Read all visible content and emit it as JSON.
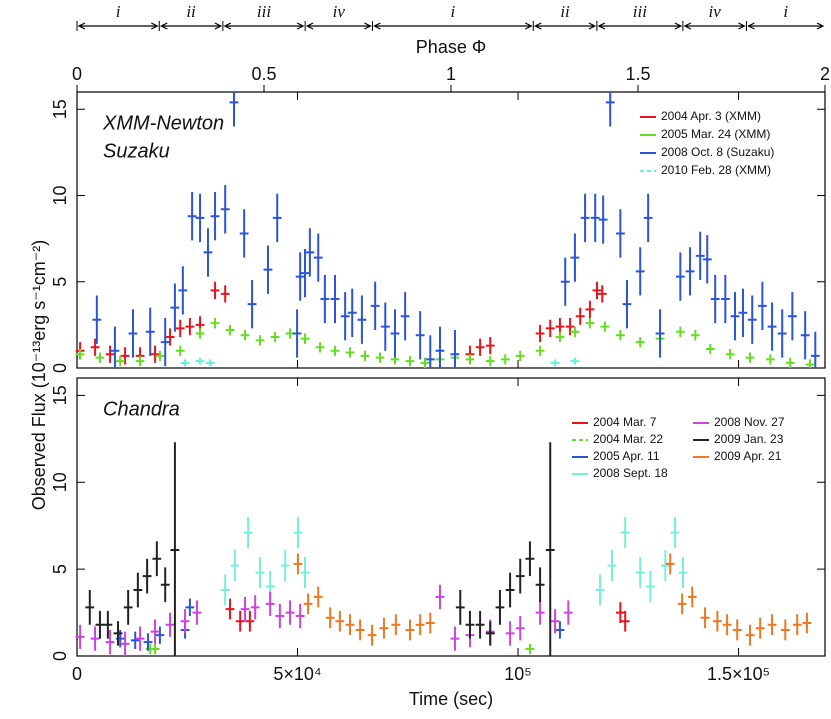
{
  "chart_data": [
    {
      "type": "errorbar",
      "ylabel": "Observed Flux (10⁻¹³erg s⁻¹cm⁻²)",
      "x2label": "Phase Φ",
      "x2lim": [
        0,
        2
      ],
      "x2ticks": [
        0,
        0.5,
        1,
        1.5,
        2
      ],
      "intervals": [
        {
          "label": "i",
          "start": 0,
          "end": 0.22
        },
        {
          "label": "ii",
          "start": 0.22,
          "end": 0.39
        },
        {
          "label": "iii",
          "start": 0.39,
          "end": 0.61
        },
        {
          "label": "iv",
          "start": 0.61,
          "end": 0.79
        },
        {
          "label": "i",
          "start": 0.79,
          "end": 1.22
        },
        {
          "label": "ii",
          "start": 1.22,
          "end": 1.39
        },
        {
          "label": "iii",
          "start": 1.39,
          "end": 1.62
        },
        {
          "label": "iv",
          "start": 1.62,
          "end": 1.79
        },
        {
          "label": "i",
          "start": 1.79,
          "end": 2
        }
      ],
      "annotations": [
        "XMM-Newton",
        "Suzaku"
      ],
      "xlim": [
        0,
        169600
      ],
      "ylim": [
        0,
        16
      ],
      "yticks": [
        0,
        5,
        10,
        15
      ],
      "series": [
        {
          "name": "2004 Apr. 3 (XMM)",
          "color": "#e8141c",
          "error": 0.5,
          "xerr": 1000,
          "x": [
            700,
            4100,
            7500,
            10900,
            14300,
            17700,
            21100,
            23400,
            25600,
            27900,
            31300,
            33600,
            89100,
            91400,
            93700,
            105000,
            107300,
            109500,
            111800,
            114100,
            116300,
            117900,
            119100
          ],
          "values": [
            1.0,
            1.2,
            0.8,
            0.7,
            0.7,
            0.8,
            1.8,
            2.3,
            2.4,
            2.5,
            4.5,
            4.3,
            0.8,
            1.2,
            1.3,
            2.0,
            2.3,
            2.4,
            2.4,
            3.0,
            3.4,
            4.5,
            4.3
          ]
        },
        {
          "name": "2005 Mar. 24 (XMM)",
          "color": "#66dd22",
          "error": 0.3,
          "xerr": 1000,
          "x": [
            700,
            5200,
            9800,
            14300,
            18800,
            23400,
            27900,
            31300,
            34700,
            38100,
            41500,
            44900,
            48300,
            51700,
            55100,
            58500,
            61900,
            65300,
            68700,
            72100,
            75500,
            78900,
            82300,
            85700,
            89100,
            93700,
            97100,
            100500,
            105000,
            109500,
            112900,
            116300,
            119700,
            123200,
            127700,
            132200,
            136800,
            140200,
            143600,
            148100,
            152600,
            157200,
            161700,
            166200
          ],
          "values": [
            0.8,
            0.6,
            0.4,
            0.4,
            0.7,
            1.0,
            2.0,
            2.6,
            2.2,
            1.9,
            1.6,
            1.8,
            2.0,
            1.7,
            1.2,
            1.0,
            0.9,
            0.7,
            0.6,
            0.5,
            0.4,
            0.3,
            0.5,
            0.6,
            0.5,
            0.4,
            0.5,
            0.7,
            1.0,
            1.8,
            2.1,
            2.6,
            2.4,
            1.9,
            1.5,
            1.7,
            2.1,
            1.9,
            1.1,
            0.8,
            0.6,
            0.5,
            0.3,
            0.2
          ]
        },
        {
          "name": "2008 Oct. 8 (Suzaku)",
          "color": "#2a55d8",
          "error": 1.4,
          "xerr": 1000,
          "x": [
            4500,
            8600,
            12700,
            16600,
            20000,
            22200,
            24000,
            26100,
            27900,
            29700,
            31300,
            33600,
            35600,
            37900,
            39700,
            43300,
            45400,
            49900,
            50600,
            51700,
            52800,
            54700,
            56200,
            58500,
            60800,
            62400,
            64600,
            67600,
            69900,
            72100,
            74400,
            77800,
            80100,
            82300,
            85700,
            110700,
            112900,
            115200,
            117500,
            119300,
            120900,
            123200,
            124700,
            127700,
            129500,
            132200,
            136800,
            139000,
            141300,
            142900,
            144700,
            147000,
            149200,
            151000,
            153100,
            155400,
            157600,
            159900,
            162200,
            165100,
            167400
          ],
          "values": [
            2.8,
            1.0,
            2.0,
            2.1,
            1.5,
            3.5,
            4.5,
            8.8,
            8.7,
            6.7,
            8.8,
            9.2,
            15.4,
            7.8,
            3.7,
            5.7,
            8.7,
            2.0,
            5.3,
            5.5,
            6.7,
            6.4,
            4.0,
            4.0,
            3.0,
            3.2,
            2.8,
            3.6,
            2.4,
            2.0,
            3.0,
            1.9,
            0.5,
            1.0,
            0.8,
            5.0,
            6.4,
            8.7,
            8.7,
            8.6,
            15.4,
            7.8,
            3.7,
            5.6,
            8.7,
            2.0,
            5.3,
            5.6,
            6.5,
            6.3,
            4.0,
            4.0,
            3.0,
            3.2,
            2.8,
            3.6,
            2.4,
            2.0,
            3.0,
            1.9,
            0.7
          ]
        },
        {
          "name": "2010 Feb. 28 (XMM)",
          "color": "#66eedd",
          "dash": true,
          "error": 0.2,
          "xerr": 1000,
          "x": [
            24500,
            27900,
            30200,
            108400,
            112900
          ],
          "values": [
            0.3,
            0.4,
            0.3,
            0.3,
            0.4
          ]
        }
      ]
    },
    {
      "type": "errorbar",
      "xlabel": "Time (sec)",
      "annotations": [
        "Chandra"
      ],
      "xlim": [
        0,
        169600
      ],
      "ylim": [
        0,
        16
      ],
      "yticks": [
        0,
        5,
        10,
        15
      ],
      "xticks": [
        0,
        {
          "value": 50000,
          "label": "5×10⁴"
        },
        {
          "value": 100000,
          "label": "10⁵"
        },
        {
          "value": 150000,
          "label": "1.5×10⁵"
        }
      ],
      "series": [
        {
          "name": "2004 Mar. 7",
          "color": "#e8141c",
          "error": 0.6,
          "xerr": 1000,
          "x": [
            34700,
            37000,
            39200,
            123200,
            124300
          ],
          "values": [
            2.7,
            2.0,
            2.0,
            2.5,
            2.0
          ]
        },
        {
          "name": "2004 Mar. 22",
          "color": "#66dd22",
          "dash": true,
          "error": 0.3,
          "xerr": 1000,
          "x": [
            16600,
            17700,
            102700
          ],
          "values": [
            0.4,
            0.4,
            0.4
          ]
        },
        {
          "name": "2005 Apr. 11",
          "color": "#2a55d8",
          "error": 0.5,
          "xerr": 1000,
          "x": [
            9800,
            13200,
            16100,
            18800,
            24500,
            25600,
            109500
          ],
          "values": [
            1.0,
            0.9,
            0.8,
            1.2,
            1.5,
            2.8,
            1.5
          ]
        },
        {
          "name": "2008 Sept. 18",
          "color": "#77eedd",
          "error": 0.9,
          "xerr": 1000,
          "x": [
            33600,
            35800,
            38800,
            41500,
            43800,
            47200,
            50100,
            51700,
            118600,
            121300,
            124300,
            127700,
            130000,
            133400,
            135600,
            137400
          ],
          "values": [
            3.8,
            5.2,
            7.1,
            4.8,
            4.0,
            5.2,
            7.1,
            4.8,
            3.8,
            5.2,
            7.1,
            4.8,
            4.0,
            5.2,
            7.1,
            4.8
          ]
        },
        {
          "name": "2008 Nov. 27",
          "color": "#cc44dd",
          "error": 0.7,
          "xerr": 1000,
          "x": [
            700,
            4100,
            7500,
            10900,
            14300,
            17700,
            21100,
            24500,
            27200,
            38100,
            40400,
            43800,
            46000,
            48300,
            50600,
            82300,
            85700,
            89100,
            93700,
            98200,
            100500,
            105000,
            108400,
            111400
          ],
          "values": [
            1.1,
            1.0,
            0.8,
            0.7,
            1.0,
            1.4,
            1.8,
            2.0,
            2.5,
            2.7,
            2.8,
            3.0,
            2.3,
            2.5,
            2.3,
            3.4,
            1.0,
            1.2,
            1.4,
            1.3,
            1.6,
            2.5,
            2.0,
            2.5
          ]
        },
        {
          "name": "2009 Jan. 23",
          "color": "#222222",
          "xerr": 1000,
          "x": [
            2900,
            5200,
            7000,
            9300,
            11600,
            13800,
            15900,
            18100,
            20000,
            22200,
            86900,
            89100,
            91400,
            93700,
            95900,
            98200,
            100500,
            102700,
            105000,
            107300
          ],
          "values": [
            2.8,
            1.8,
            1.8,
            1.3,
            2.8,
            3.8,
            4.6,
            5.6,
            4.1,
            6.1,
            2.8,
            1.8,
            1.8,
            1.3,
            2.8,
            3.8,
            4.6,
            5.6,
            4.1,
            6.1
          ],
          "errors": [
            1.0,
            0.8,
            0.8,
            0.7,
            1.0,
            1.0,
            1.0,
            1.0,
            1.0,
            6.2,
            1.0,
            0.8,
            0.8,
            0.7,
            1.0,
            1.0,
            1.0,
            1.0,
            1.0,
            6.2
          ]
        },
        {
          "name": "2009 Apr. 21",
          "color": "#ee7722",
          "error": 0.6,
          "xerr": 1000,
          "x": [
            50100,
            52400,
            54700,
            57400,
            59600,
            61900,
            64200,
            66900,
            69600,
            72300,
            75500,
            77800,
            80100,
            134500,
            137200,
            139500,
            142400,
            145200,
            147400,
            149700,
            152600,
            154900,
            157600,
            160600,
            163300,
            165500
          ],
          "values": [
            5.3,
            3.0,
            3.4,
            2.2,
            2.0,
            1.8,
            1.5,
            1.2,
            1.6,
            1.8,
            1.5,
            1.8,
            1.9,
            5.3,
            3.0,
            3.4,
            2.2,
            2.0,
            1.8,
            1.5,
            1.2,
            1.6,
            1.8,
            1.5,
            1.8,
            1.9
          ]
        }
      ]
    }
  ]
}
